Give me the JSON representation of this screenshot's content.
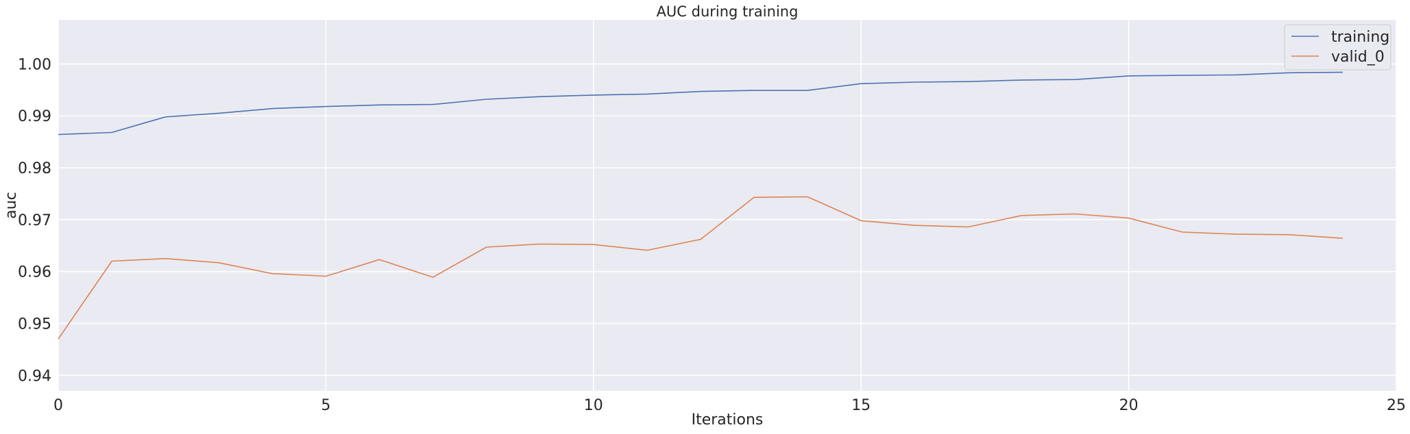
{
  "chart_data": {
    "type": "line",
    "title": "AUC during training",
    "xlabel": "Iterations",
    "ylabel": "auc",
    "xlim": [
      0,
      25
    ],
    "ylim": [
      0.937,
      1.0085
    ],
    "xticks": [
      0,
      5,
      10,
      15,
      20,
      25
    ],
    "yticks": [
      0.94,
      0.95,
      0.96,
      0.97,
      0.98,
      0.99,
      1.0
    ],
    "xtick_labels": [
      "0",
      "5",
      "10",
      "15",
      "20",
      "25"
    ],
    "ytick_labels": [
      "0.94",
      "0.95",
      "0.96",
      "0.97",
      "0.98",
      "0.99",
      "1.00"
    ],
    "grid": true,
    "legend_position": "top-right",
    "x": [
      0,
      1,
      2,
      3,
      4,
      5,
      6,
      7,
      8,
      9,
      10,
      11,
      12,
      13,
      14,
      15,
      16,
      17,
      18,
      19,
      20,
      21,
      22,
      23,
      24
    ],
    "series": [
      {
        "name": "training",
        "color": "#4c72b0",
        "values": [
          0.9864,
          0.9868,
          0.9898,
          0.9905,
          0.9914,
          0.9918,
          0.9921,
          0.9922,
          0.9932,
          0.9937,
          0.994,
          0.9942,
          0.9947,
          0.9949,
          0.9949,
          0.9962,
          0.9965,
          0.9966,
          0.9969,
          0.997,
          0.9977,
          0.9978,
          0.9979,
          0.9983,
          0.9984
        ]
      },
      {
        "name": "valid_0",
        "color": "#dd8452",
        "values": [
          0.947,
          0.962,
          0.9625,
          0.9617,
          0.9596,
          0.9591,
          0.9623,
          0.9589,
          0.9647,
          0.9653,
          0.9652,
          0.9641,
          0.9662,
          0.9743,
          0.9744,
          0.9698,
          0.9689,
          0.9686,
          0.9708,
          0.9711,
          0.9703,
          0.9676,
          0.9672,
          0.9671,
          0.9664
        ]
      }
    ]
  }
}
